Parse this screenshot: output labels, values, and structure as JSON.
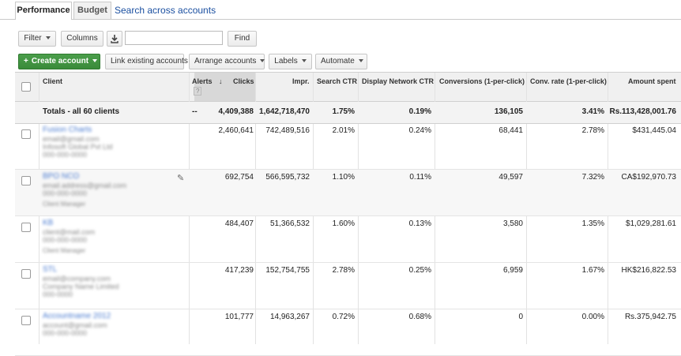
{
  "tabs": [
    {
      "label": "Performance",
      "active": true
    },
    {
      "label": "Budget",
      "active": false
    }
  ],
  "search_link": "Search across accounts",
  "toolbar1": {
    "filter": "Filter",
    "columns": "Columns",
    "download_icon": "download-icon",
    "find": "Find",
    "search_value": ""
  },
  "toolbar2": {
    "create": "Create account",
    "link": "Link existing accounts",
    "arrange": "Arrange accounts",
    "labels": "Labels",
    "automate": "Automate"
  },
  "columns": {
    "client": "Client",
    "alerts": "Alerts",
    "alerts_help": "?",
    "clicks": "Clicks",
    "impr": "Impr.",
    "search_ctr": "Search CTR",
    "dn_ctr": "Display Network CTR",
    "conversions": "Conversions (1-per-click)",
    "conv_rate": "Conv. rate (1-per-click)",
    "amount": "Amount spent"
  },
  "totals": {
    "label": "Totals - all 60 clients",
    "alerts": "--",
    "clicks": "4,409,388",
    "impr": "1,642,718,470",
    "search_ctr": "1.75%",
    "dn_ctr": "0.19%",
    "conversions": "136,105",
    "conv_rate": "3.41%",
    "amount": "Rs.113,428,001.76"
  },
  "rows": [
    {
      "clicks": "2,460,641",
      "impr": "742,489,516",
      "search_ctr": "2.01%",
      "dn_ctr": "0.24%",
      "conversions": "68,441",
      "conv_rate": "2.78%",
      "amount": "$431,445.04"
    },
    {
      "clicks": "692,754",
      "impr": "566,595,732",
      "search_ctr": "1.10%",
      "dn_ctr": "0.11%",
      "conversions": "49,597",
      "conv_rate": "7.32%",
      "amount": "CA$192,970.73"
    },
    {
      "clicks": "484,407",
      "impr": "51,366,532",
      "search_ctr": "1.60%",
      "dn_ctr": "0.13%",
      "conversions": "3,580",
      "conv_rate": "1.35%",
      "amount": "$1,029,281.61"
    },
    {
      "clicks": "417,239",
      "impr": "152,754,755",
      "search_ctr": "2.78%",
      "dn_ctr": "0.25%",
      "conversions": "6,959",
      "conv_rate": "1.67%",
      "amount": "HK$216,822.53"
    },
    {
      "clicks": "101,777",
      "impr": "14,963,267",
      "search_ctr": "0.72%",
      "dn_ctr": "0.68%",
      "conversions": "0",
      "conv_rate": "0.00%",
      "amount": "Rs.375,942.75"
    }
  ]
}
